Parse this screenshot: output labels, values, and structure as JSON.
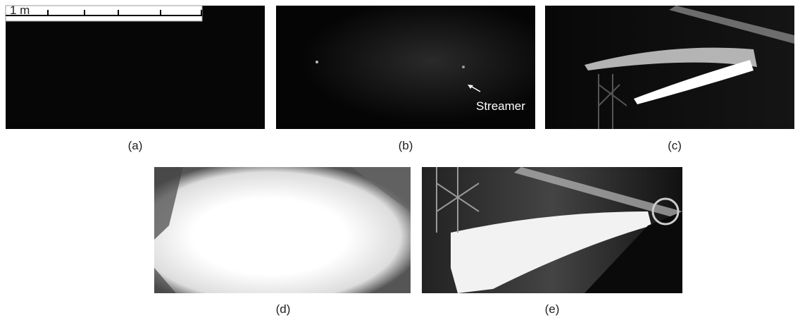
{
  "scale_bar": {
    "label": "1 m"
  },
  "annotation": {
    "text": "Streamer"
  },
  "panels": [
    {
      "label": "(a)"
    },
    {
      "label": "(b)"
    },
    {
      "label": "(c)"
    },
    {
      "label": "(d)"
    },
    {
      "label": "(e)"
    }
  ]
}
